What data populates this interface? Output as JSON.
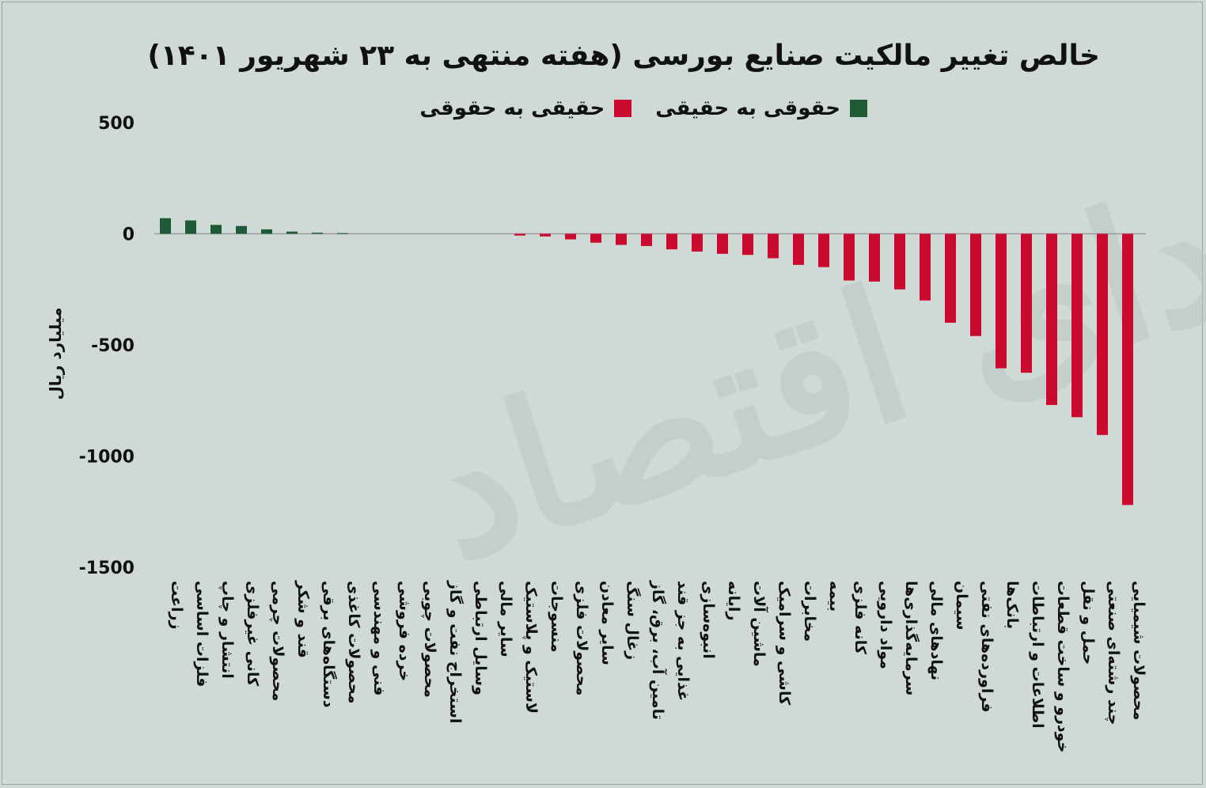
{
  "title": "خالص تغییر مالکیت صنایع بورسی (هفته منتهی به ۲۳ شهریور ۱۴۰۱)",
  "watermark": "فردای اقتصاد",
  "colors": {
    "positive": "#1e5a35",
    "negative": "#cc0a2f",
    "baseline": "#999999",
    "background": "#cfd9d6"
  },
  "chart_data": {
    "type": "bar",
    "title": "خالص تغییر مالکیت صنایع بورسی (هفته منتهی به ۲۳ شهریور ۱۴۰۱)",
    "ylabel": "میلیارد ریال",
    "xlabel": "",
    "ylim": [
      -1500,
      500
    ],
    "yticks": [
      500,
      0,
      -500,
      -1000,
      -1500
    ],
    "ytick_labels": [
      "500",
      "0",
      "-500",
      "-1000",
      "-1500"
    ],
    "grid": false,
    "legend_position": "top-center",
    "legend": [
      {
        "name": "حقوقی به حقیقی",
        "color": "#1e5a35"
      },
      {
        "name": "حقیقی به حقوقی",
        "color": "#cc0a2f"
      }
    ],
    "categories": [
      "زراعت",
      "فلزات اساسی",
      "انتشار و چاپ",
      "کانی غیرفلزی",
      "محصولات چرمی",
      "قند و شکر",
      "دستگاه‌های برقی",
      "محصولات کاغذی",
      "فنی و مهندسی",
      "خرده فروشی",
      "محصولات چوبی",
      "استخراج نفت و گاز",
      "وسایل ارتباطی",
      "سایر مالی",
      "لاستیک و پلاستیک",
      "منسوجات",
      "محصولات فلزی",
      "سایر معادن",
      "زغال سنگ",
      "تامین آب، برق، گاز",
      "غذایی به جز قند",
      "انبوه‌سازی",
      "رایانه",
      "ماشین آلات",
      "کاشی و سرامیک",
      "مخابرات",
      "بیمه",
      "کانه فلزی",
      "مواد دارویی",
      "سرمایه‌گذاری‌ها",
      "نهادهای مالی",
      "سیمان",
      "فراورده‌های نفتی",
      "بانک‌ها",
      "اطلاعات و ارتباطات",
      "خودرو و ساخت قطعات",
      "حمل و نقل",
      "چند رشته‌ای صنعتی",
      "محصولات شیمیایی"
    ],
    "values": [
      70,
      60,
      40,
      35,
      20,
      10,
      5,
      3,
      0,
      0,
      0,
      0,
      0,
      0,
      -8,
      -12,
      -25,
      -40,
      -50,
      -55,
      -70,
      -80,
      -90,
      -95,
      -110,
      -140,
      -150,
      -210,
      -215,
      -250,
      -300,
      -400,
      -460,
      -605,
      -625,
      -770,
      -825,
      -905,
      -1220
    ]
  }
}
